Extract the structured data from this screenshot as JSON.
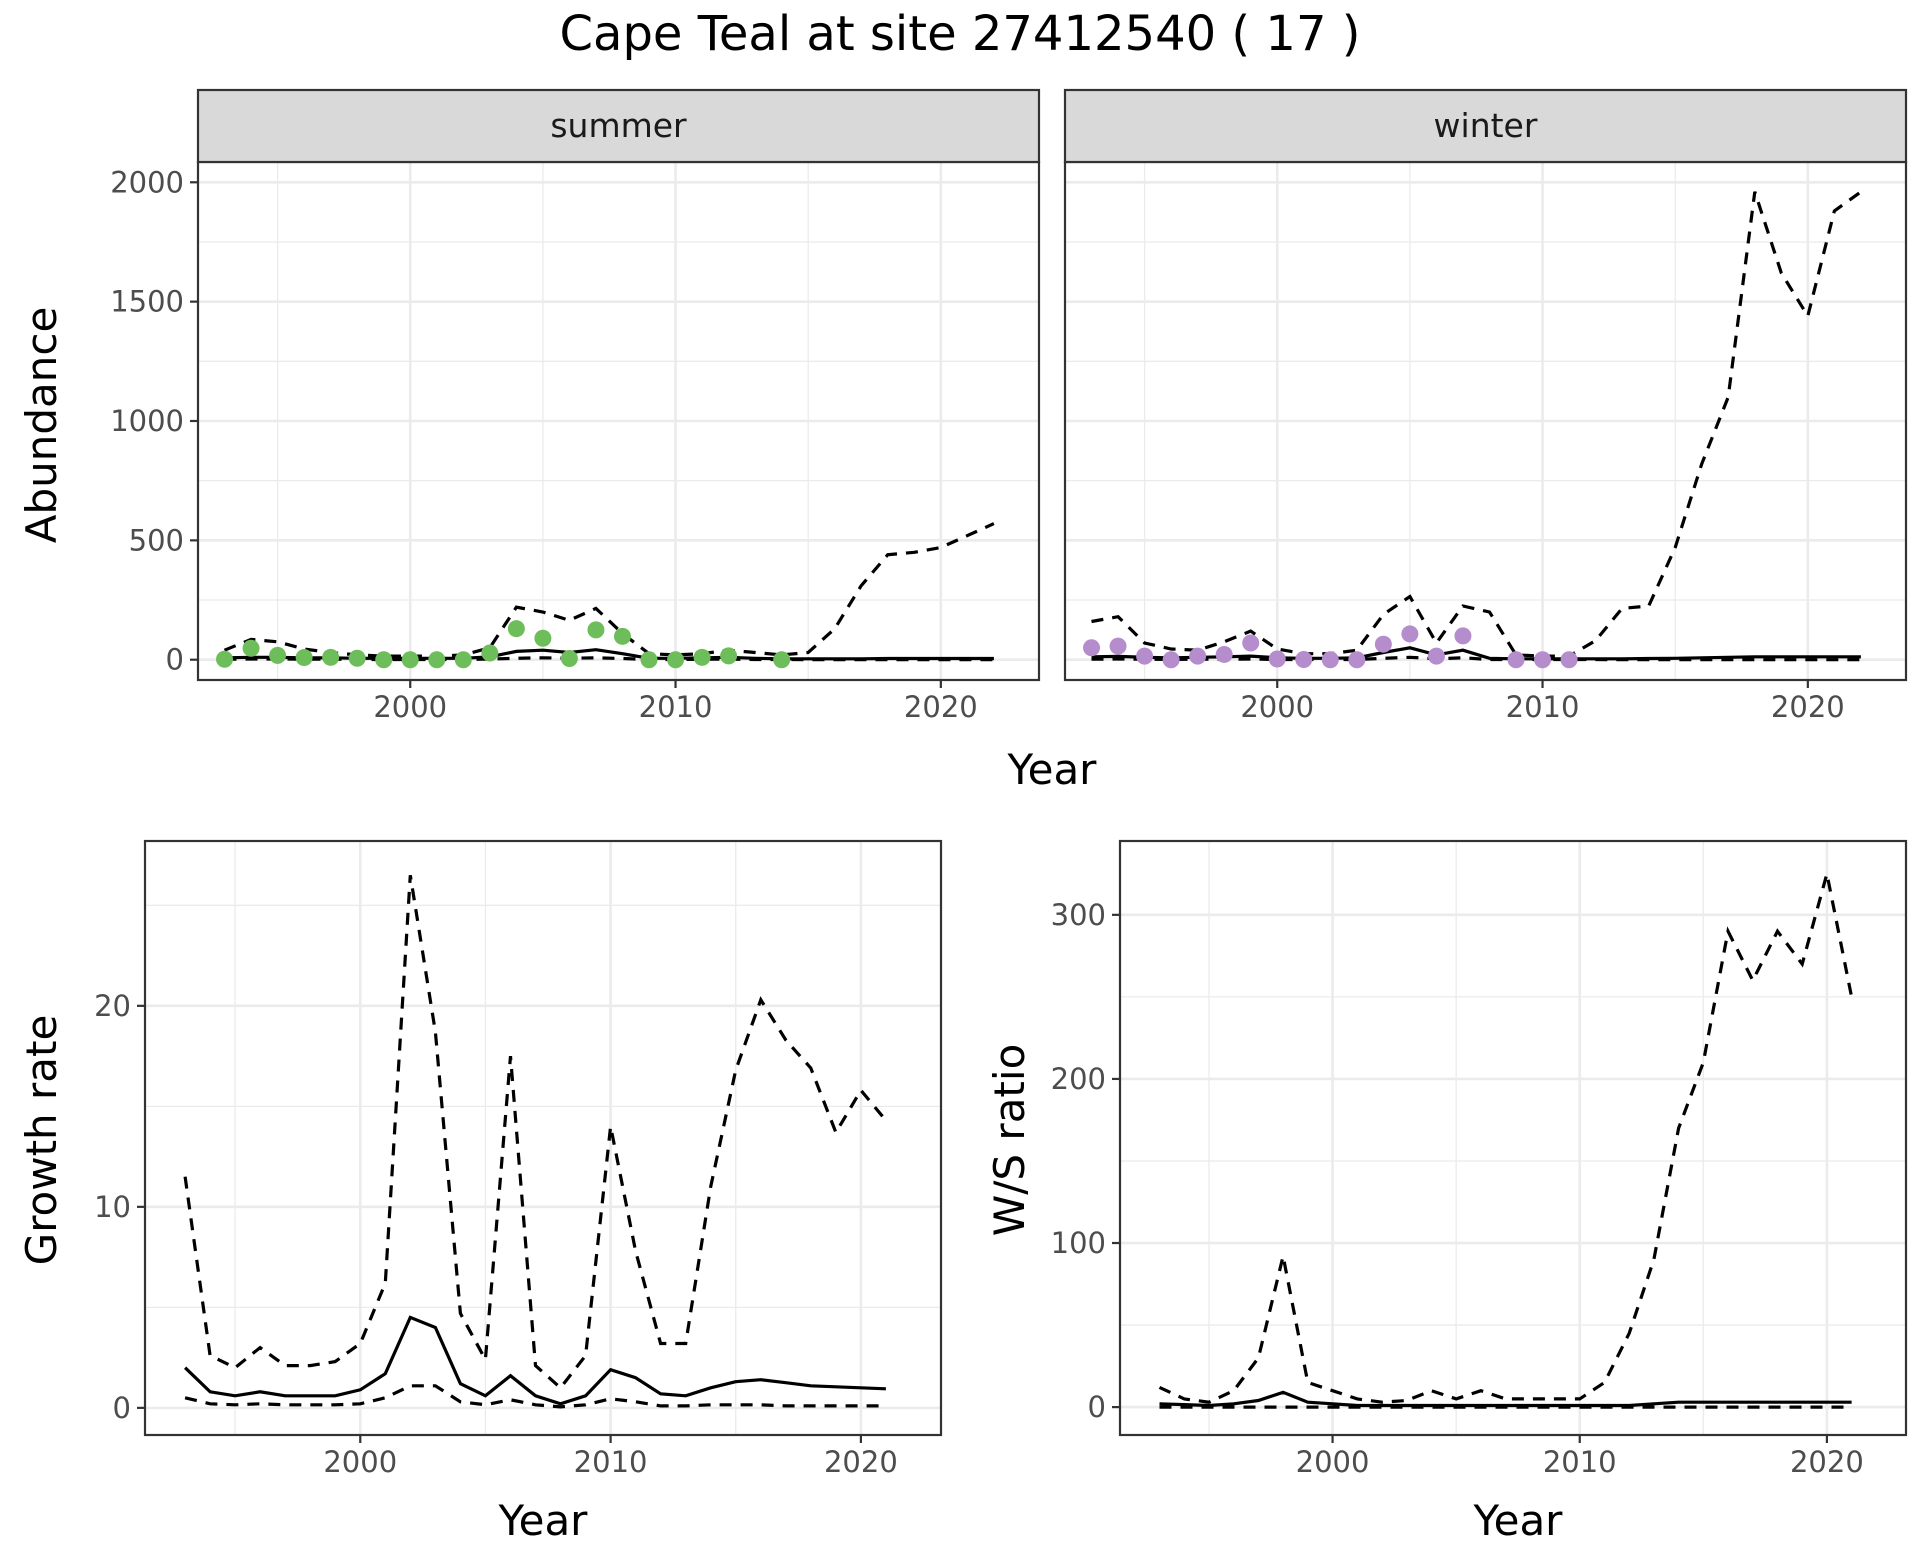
{
  "figure": {
    "title": "Cape Teal at site 27412540 ( 17 )"
  },
  "chart_data": [
    {
      "id": "abundance",
      "type": "line",
      "facets": [
        "summer",
        "winter"
      ],
      "xlabel": "Year",
      "ylabel": "Abundance",
      "xlim": [
        1992,
        2023.7
      ],
      "ylim": [
        -85,
        2085
      ],
      "xticks": [
        2000,
        2010,
        2020
      ],
      "yticks": [
        0,
        500,
        1000,
        1500,
        2000
      ],
      "grid": true,
      "point_colors": {
        "summer": "#6dbd5a",
        "winter": "#b58ccc"
      },
      "panels": {
        "summer": {
          "x": [
            1993,
            1994,
            1995,
            1996,
            1997,
            1998,
            1999,
            2000,
            2001,
            2002,
            2003,
            2004,
            2005,
            2006,
            2007,
            2008,
            2009,
            2010,
            2011,
            2012,
            2013,
            2014,
            2015,
            2016,
            2017,
            2018,
            2019,
            2020,
            2021,
            2022
          ],
          "mean": [
            8,
            10,
            10,
            8,
            8,
            6,
            6,
            6,
            6,
            6,
            12,
            35,
            40,
            30,
            42,
            25,
            6,
            6,
            8,
            10,
            6,
            4,
            4,
            4,
            4,
            5,
            5,
            5,
            5,
            5
          ],
          "lower": [
            2,
            3,
            3,
            2,
            2,
            1,
            1,
            1,
            1,
            1,
            3,
            6,
            8,
            6,
            8,
            5,
            1,
            1,
            2,
            2,
            1,
            1,
            0,
            0,
            0,
            0,
            0,
            0,
            0,
            0
          ],
          "upper": [
            40,
            85,
            75,
            45,
            30,
            20,
            15,
            15,
            15,
            20,
            50,
            220,
            200,
            165,
            215,
            110,
            25,
            20,
            25,
            40,
            30,
            20,
            30,
            130,
            310,
            440,
            450,
            470,
            520,
            570
          ],
          "points": {
            "x": [
              1993,
              1994,
              1995,
              1996,
              1997,
              1998,
              1999,
              2000,
              2001,
              2002,
              2003,
              2004,
              2005,
              2006,
              2007,
              2008,
              2009,
              2010,
              2011,
              2012,
              2014
            ],
            "y": [
              2,
              48,
              18,
              9,
              10,
              6,
              0,
              0,
              0,
              0,
              28,
              130,
              90,
              5,
              125,
              98,
              0,
              0,
              10,
              16,
              0
            ]
          }
        },
        "winter": {
          "x": [
            1993,
            1994,
            1995,
            1996,
            1997,
            1998,
            1999,
            2000,
            2001,
            2002,
            2003,
            2004,
            2005,
            2006,
            2007,
            2008,
            2009,
            2010,
            2011,
            2012,
            2013,
            2014,
            2015,
            2016,
            2017,
            2018,
            2019,
            2020,
            2021,
            2022
          ],
          "mean": [
            12,
            14,
            10,
            8,
            10,
            12,
            15,
            8,
            6,
            6,
            8,
            30,
            50,
            20,
            40,
            6,
            4,
            4,
            4,
            4,
            4,
            5,
            6,
            8,
            10,
            12,
            12,
            12,
            12,
            12
          ],
          "lower": [
            2,
            3,
            2,
            1,
            2,
            2,
            3,
            1,
            1,
            1,
            1,
            6,
            10,
            4,
            8,
            1,
            1,
            1,
            1,
            1,
            0,
            0,
            0,
            0,
            0,
            0,
            0,
            0,
            0,
            0
          ],
          "upper": [
            160,
            180,
            70,
            45,
            40,
            75,
            120,
            45,
            25,
            25,
            40,
            190,
            265,
            70,
            225,
            200,
            20,
            15,
            15,
            80,
            215,
            225,
            470,
            820,
            1100,
            1960,
            1620,
            1440,
            1880,
            1960
          ],
          "points": {
            "x": [
              1993,
              1994,
              1995,
              1996,
              1997,
              1998,
              1999,
              2000,
              2001,
              2002,
              2003,
              2004,
              2005,
              2006,
              2007,
              2009,
              2010,
              2011
            ],
            "y": [
              50,
              57,
              15,
              0,
              15,
              22,
              70,
              3,
              1,
              0,
              0,
              65,
              108,
              15,
              100,
              0,
              0,
              0
            ]
          }
        }
      }
    },
    {
      "id": "growth",
      "type": "line",
      "xlabel": "Year",
      "ylabel": "Growth rate",
      "xlim": [
        1991.4,
        2023.2
      ],
      "ylim": [
        -1.35,
        28.2
      ],
      "xticks": [
        2000,
        2010,
        2020
      ],
      "yticks": [
        0,
        10,
        20
      ],
      "grid": true,
      "x": [
        1993,
        1994,
        1995,
        1996,
        1997,
        1998,
        1999,
        2000,
        2001,
        2002,
        2003,
        2004,
        2005,
        2006,
        2007,
        2008,
        2009,
        2010,
        2011,
        2012,
        2013,
        2014,
        2015,
        2016,
        2017,
        2018,
        2019,
        2020,
        2021
      ],
      "mean": [
        2.0,
        0.8,
        0.6,
        0.8,
        0.6,
        0.6,
        0.6,
        0.9,
        1.7,
        4.5,
        4.0,
        1.2,
        0.6,
        1.6,
        0.6,
        0.2,
        0.6,
        1.9,
        1.5,
        0.7,
        0.6,
        1.0,
        1.3,
        1.4,
        1.25,
        1.1,
        1.05,
        1.0,
        0.95
      ],
      "lower": [
        0.5,
        0.2,
        0.15,
        0.2,
        0.15,
        0.15,
        0.15,
        0.2,
        0.5,
        1.1,
        1.1,
        0.3,
        0.15,
        0.4,
        0.15,
        0.05,
        0.15,
        0.45,
        0.3,
        0.1,
        0.1,
        0.15,
        0.15,
        0.15,
        0.1,
        0.1,
        0.1,
        0.1,
        0.1
      ],
      "upper": [
        11.5,
        2.6,
        2.0,
        3.0,
        2.1,
        2.1,
        2.3,
        3.2,
        6.2,
        26.5,
        18.7,
        4.7,
        2.4,
        17.5,
        2.1,
        1.0,
        2.6,
        14.0,
        7.8,
        3.2,
        3.2,
        11.0,
        16.8,
        20.3,
        18.3,
        16.9,
        13.7,
        15.8,
        14.3
      ]
    },
    {
      "id": "ws_ratio",
      "type": "line",
      "xlabel": "Year",
      "ylabel": "W/S ratio",
      "xlim": [
        1991.4,
        2023.2
      ],
      "ylim": [
        -17,
        345
      ],
      "xticks": [
        2000,
        2010,
        2020
      ],
      "yticks": [
        0,
        100,
        200,
        300
      ],
      "grid": true,
      "x": [
        1993,
        1994,
        1995,
        1996,
        1997,
        1998,
        1999,
        2000,
        2001,
        2002,
        2003,
        2004,
        2005,
        2006,
        2007,
        2008,
        2009,
        2010,
        2011,
        2012,
        2013,
        2014,
        2015,
        2016,
        2017,
        2018,
        2019,
        2020,
        2021
      ],
      "mean": [
        2,
        1.5,
        1,
        2,
        4,
        9,
        3,
        2,
        1,
        1,
        1,
        1,
        1,
        1,
        1,
        1,
        1,
        1,
        1,
        1,
        2,
        3,
        3,
        3,
        3,
        3,
        3,
        3,
        3
      ],
      "lower": [
        0,
        0,
        0,
        0,
        0,
        0,
        0,
        0,
        0,
        0,
        0,
        0,
        0,
        0,
        0,
        0,
        0,
        0,
        0,
        0,
        0,
        0,
        0,
        0,
        0,
        0,
        0,
        0,
        0
      ],
      "upper": [
        12,
        5,
        3,
        10,
        30,
        92,
        15,
        10,
        5,
        3,
        4,
        10,
        5,
        10,
        5,
        5,
        5,
        5,
        15,
        45,
        90,
        170,
        210,
        290,
        260,
        290,
        270,
        325,
        250
      ]
    }
  ]
}
